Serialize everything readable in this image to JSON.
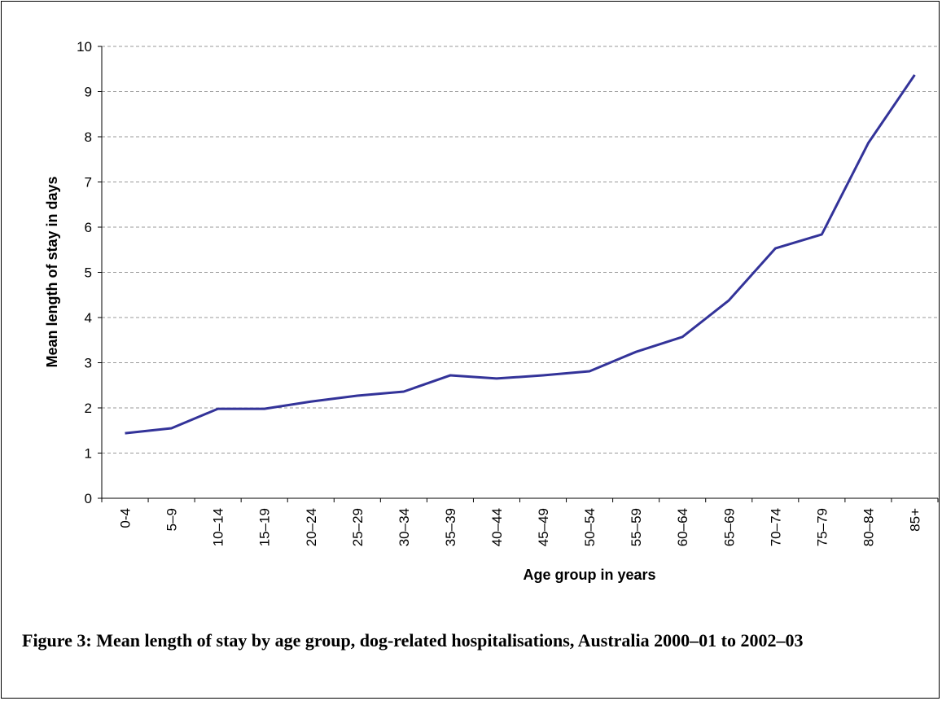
{
  "chart_data": {
    "type": "line",
    "x_label": "Age group in years",
    "y_label": "Mean length of stay in days",
    "caption": "Figure 3: Mean length of stay by age group, dog-related hospitalisations, Australia 2000–01 to 2002–03",
    "categories": [
      "0-4",
      "5–9",
      "10–14",
      "15–19",
      "20–24",
      "25–29",
      "30–34",
      "35–39",
      "40–44",
      "45–49",
      "50–54",
      "55–59",
      "60–64",
      "65–69",
      "70–74",
      "75–79",
      "80–84",
      "85+"
    ],
    "series": [
      {
        "color": "#333399",
        "values": [
          1.44,
          1.55,
          1.98,
          1.98,
          2.14,
          2.27,
          2.36,
          2.72,
          2.65,
          2.72,
          2.81,
          3.24,
          3.57,
          4.38,
          5.53,
          5.84,
          7.86,
          9.37
        ]
      }
    ],
    "ylim": [
      0,
      10
    ],
    "yticks": [
      0,
      1,
      2,
      3,
      4,
      5,
      6,
      7,
      8,
      9,
      10
    ],
    "grid": true
  }
}
